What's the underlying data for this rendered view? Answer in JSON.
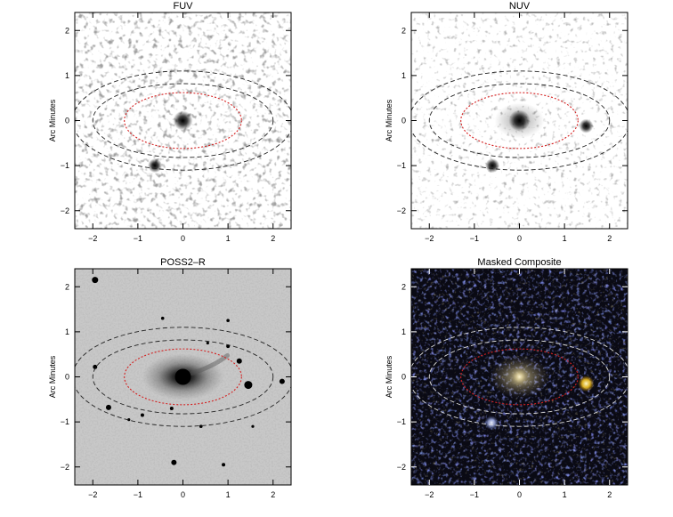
{
  "panels": [
    {
      "key": "fuv",
      "title": "FUV",
      "ylabel": "Arc Minutes",
      "style": "gray"
    },
    {
      "key": "nuv",
      "title": "NUV",
      "ylabel": "Arc Minutes",
      "style": "gray"
    },
    {
      "key": "poss",
      "title": "POSS2–R",
      "ylabel": "Arc Minutes",
      "style": "optical"
    },
    {
      "key": "comp",
      "title": "Masked Composite",
      "ylabel": "Arc Minutes",
      "style": "color"
    }
  ],
  "axis": {
    "x_ticks": [
      "−2",
      "−1",
      "0",
      "1",
      "2"
    ],
    "y_ticks": [
      "2",
      "1",
      "0",
      "−1",
      "−2"
    ],
    "range": [
      -2.4,
      2.4
    ]
  },
  "colors": {
    "inner_ellipse": "#d42020",
    "outer_ellipse_dark": "#222222",
    "outer_ellipse_light": "#dddddd",
    "composite_bg": "#0a0a14"
  }
}
